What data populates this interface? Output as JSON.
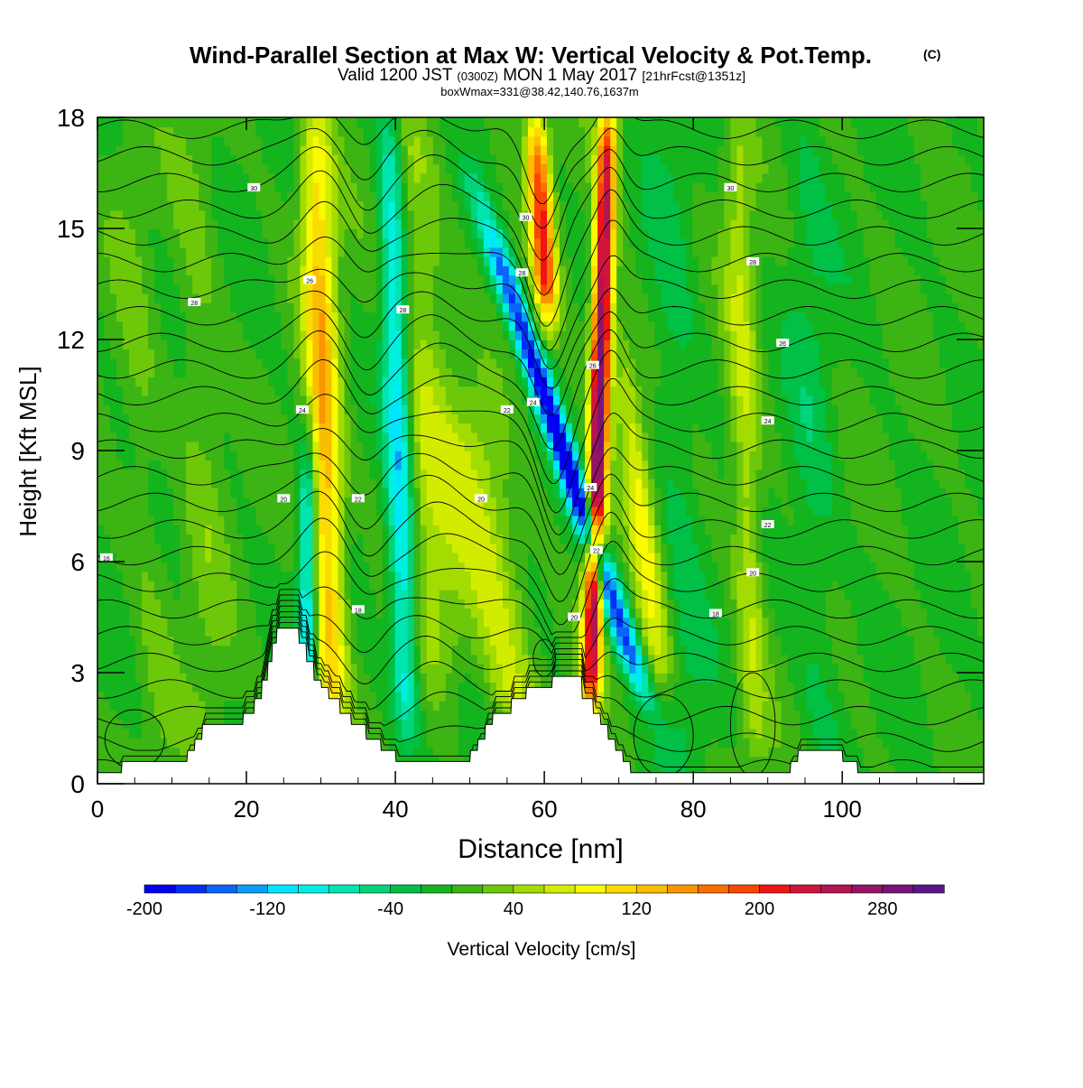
{
  "chart_data": {
    "type": "heatmap",
    "title": "Wind-Parallel Section at Max W: Vertical Velocity & Pot.Temp.",
    "title_mark": "(C)",
    "subtitle": {
      "valid": "Valid 1200 JST",
      "utc": "(0300Z)",
      "date": "MON 1 May 2017",
      "forecast": "[21hrFcst@1351z]"
    },
    "box_info": "boxWmax=331@38.42,140.76,1637m",
    "xlabel": "Distance [nm]",
    "ylabel": "Height [Kft MSL]",
    "xlim": [
      0,
      119
    ],
    "ylim": [
      0,
      18
    ],
    "x_ticks": [
      "0",
      "20",
      "40",
      "60",
      "80",
      "100"
    ],
    "y_ticks": [
      "0",
      "3",
      "6",
      "9",
      "12",
      "15",
      "18"
    ],
    "colorbar": {
      "label": "Vertical Velocity [cm/s]",
      "range": [
        -200,
        320
      ],
      "step": 20,
      "tick_labels": [
        "-200",
        "-120",
        "-40",
        "40",
        "120",
        "200",
        "280"
      ],
      "colors": [
        "#0000f2",
        "#0030f5",
        "#0a64f8",
        "#0a9ef7",
        "#00e6ff",
        "#00f0e0",
        "#00e5b0",
        "#00d47c",
        "#00c046",
        "#14b41e",
        "#3cb414",
        "#6ec80a",
        "#a2dc00",
        "#d2ec00",
        "#fafa00",
        "#fadc00",
        "#fabe00",
        "#fa9600",
        "#fa6e00",
        "#fa4600",
        "#f01414",
        "#d2143c",
        "#b41450",
        "#961464",
        "#781478",
        "#5a148c"
      ]
    },
    "terrain_kft": [
      [
        0,
        0.3
      ],
      [
        3.2,
        0.3
      ],
      [
        3.3,
        0.6
      ],
      [
        12,
        0.6
      ],
      [
        12.1,
        0.9
      ],
      [
        13,
        0.9
      ],
      [
        13.1,
        1.2
      ],
      [
        14,
        1.2
      ],
      [
        14.1,
        1.6
      ],
      [
        19.5,
        1.6
      ],
      [
        19.6,
        1.9
      ],
      [
        21,
        1.9
      ],
      [
        21.1,
        2.3
      ],
      [
        22,
        2.3
      ],
      [
        22.1,
        2.8
      ],
      [
        22.8,
        2.8
      ],
      [
        22.9,
        3.3
      ],
      [
        23.4,
        3.3
      ],
      [
        23.5,
        3.8
      ],
      [
        24,
        3.8
      ],
      [
        24.1,
        4.2
      ],
      [
        27,
        4.2
      ],
      [
        27.1,
        3.8
      ],
      [
        28,
        3.8
      ],
      [
        28.1,
        3.3
      ],
      [
        29,
        3.3
      ],
      [
        29.1,
        2.8
      ],
      [
        30,
        2.8
      ],
      [
        30.1,
        2.6
      ],
      [
        31,
        2.6
      ],
      [
        31.1,
        2.3
      ],
      [
        32.5,
        2.3
      ],
      [
        32.6,
        1.9
      ],
      [
        34,
        1.9
      ],
      [
        34.1,
        1.6
      ],
      [
        36,
        1.6
      ],
      [
        36.1,
        1.2
      ],
      [
        38,
        1.2
      ],
      [
        38.1,
        0.9
      ],
      [
        40,
        0.9
      ],
      [
        40.1,
        0.6
      ],
      [
        50,
        0.6
      ],
      [
        50.1,
        0.9
      ],
      [
        51,
        0.9
      ],
      [
        51.1,
        1.2
      ],
      [
        52,
        1.2
      ],
      [
        52.1,
        1.6
      ],
      [
        53,
        1.6
      ],
      [
        53.1,
        1.9
      ],
      [
        55.5,
        1.9
      ],
      [
        55.6,
        2.3
      ],
      [
        57.5,
        2.3
      ],
      [
        57.6,
        2.6
      ],
      [
        61,
        2.6
      ],
      [
        61.1,
        2.9
      ],
      [
        65,
        2.9
      ],
      [
        65.1,
        2.3
      ],
      [
        66.5,
        2.3
      ],
      [
        66.6,
        1.9
      ],
      [
        67.5,
        1.9
      ],
      [
        67.6,
        1.6
      ],
      [
        68.5,
        1.6
      ],
      [
        68.6,
        1.2
      ],
      [
        69.5,
        1.2
      ],
      [
        69.6,
        0.9
      ],
      [
        70.5,
        0.9
      ],
      [
        70.6,
        0.6
      ],
      [
        71.5,
        0.6
      ],
      [
        71.6,
        0.3
      ],
      [
        93,
        0.3
      ],
      [
        93.1,
        0.6
      ],
      [
        94,
        0.6
      ],
      [
        94.1,
        0.9
      ],
      [
        100,
        0.9
      ],
      [
        100.1,
        0.6
      ],
      [
        102,
        0.6
      ],
      [
        102.1,
        0.3
      ],
      [
        119,
        0.3
      ]
    ],
    "w_features": [
      {
        "kind": "up",
        "x_nm": 30.5,
        "z_low": 2,
        "z_top": 18,
        "lean": 0.05,
        "width_nm": 2.2,
        "peak": 140
      },
      {
        "kind": "down",
        "x_nm": 40.5,
        "z_low": 2,
        "z_top": 18,
        "lean": 0.05,
        "width_nm": 1.8,
        "peak": -130
      },
      {
        "kind": "down",
        "x_nm": 28.2,
        "z_low": 3,
        "z_top": 9,
        "lean": 0.0,
        "width_nm": 1.2,
        "peak": -120
      },
      {
        "kind": "up",
        "x_nm": 67.2,
        "z_low": 2.5,
        "z_top": 18,
        "lean": -0.05,
        "width_nm": 1.3,
        "peak": 300
      },
      {
        "kind": "down",
        "x_nm": 62.5,
        "z_low": 3,
        "z_top": 15,
        "lean": 0.55,
        "width_nm": 1.6,
        "peak": -200
      },
      {
        "kind": "up",
        "x_nm": 61.5,
        "z_low": 13,
        "z_top": 18,
        "lean": 0.1,
        "width_nm": 1.5,
        "peak": 200
      },
      {
        "kind": "up",
        "x_nm": 44,
        "z_low": 3,
        "z_top": 18,
        "lean": 0.1,
        "width_nm": 4,
        "peak": 55
      },
      {
        "kind": "up",
        "x_nm": 72,
        "z_low": 3,
        "z_top": 12,
        "lean": 0.2,
        "width_nm": 2,
        "peak": 80
      },
      {
        "kind": "up",
        "x_nm": 50,
        "z_low": 2,
        "z_top": 10,
        "lean": 0.3,
        "width_nm": 4,
        "peak": 70
      },
      {
        "kind": "up",
        "x_nm": 87,
        "z_low": 1,
        "z_top": 18,
        "lean": 0.05,
        "width_nm": 2,
        "peak": 60
      },
      {
        "kind": "up",
        "x_nm": 14,
        "z_low": 1,
        "z_top": 18,
        "lean": 0.05,
        "width_nm": 3,
        "peak": 25
      },
      {
        "kind": "up",
        "x_nm": 6,
        "z_low": 0.5,
        "z_top": 18,
        "lean": 0.1,
        "width_nm": 2.5,
        "peak": 20
      },
      {
        "kind": "down",
        "x_nm": 96,
        "z_low": 1,
        "z_top": 18,
        "lean": 0.05,
        "width_nm": 3,
        "peak": -25
      },
      {
        "kind": "down",
        "x_nm": 78,
        "z_low": 0.5,
        "z_top": 18,
        "lean": 0.05,
        "width_nm": 3,
        "peak": -25
      }
    ],
    "theta_contours": {
      "levels_c": [
        14,
        15,
        16,
        17,
        18,
        19,
        20,
        21,
        22,
        23,
        24,
        25,
        26,
        27,
        28,
        29,
        30,
        31,
        32,
        33,
        34,
        35,
        36,
        37,
        38
      ],
      "labels": [
        {
          "text": "16",
          "x_nm": 1.2,
          "z": 6.1
        },
        {
          "text": "18",
          "x_nm": 35,
          "z": 4.7
        },
        {
          "text": "20",
          "x_nm": 25,
          "z": 7.7
        },
        {
          "text": "22",
          "x_nm": 35,
          "z": 7.7
        },
        {
          "text": "24",
          "x_nm": 27.5,
          "z": 10.1
        },
        {
          "text": "26",
          "x_nm": 28.5,
          "z": 13.6
        },
        {
          "text": "28",
          "x_nm": 13,
          "z": 13
        },
        {
          "text": "30",
          "x_nm": 21,
          "z": 16.1
        },
        {
          "text": "28",
          "x_nm": 41,
          "z": 12.8
        },
        {
          "text": "20",
          "x_nm": 51.5,
          "z": 7.7
        },
        {
          "text": "22",
          "x_nm": 55,
          "z": 10.1
        },
        {
          "text": "24",
          "x_nm": 58.5,
          "z": 10.3
        },
        {
          "text": "28",
          "x_nm": 57,
          "z": 13.8
        },
        {
          "text": "30",
          "x_nm": 57.5,
          "z": 15.3
        },
        {
          "text": "26",
          "x_nm": 66.5,
          "z": 11.3
        },
        {
          "text": "24",
          "x_nm": 66.2,
          "z": 8
        },
        {
          "text": "22",
          "x_nm": 67,
          "z": 6.3
        },
        {
          "text": "20",
          "x_nm": 64,
          "z": 4.5
        },
        {
          "text": "30",
          "x_nm": 85,
          "z": 16.1
        },
        {
          "text": "28",
          "x_nm": 88,
          "z": 14.1
        },
        {
          "text": "26",
          "x_nm": 92,
          "z": 11.9
        },
        {
          "text": "24",
          "x_nm": 90,
          "z": 9.8
        },
        {
          "text": "22",
          "x_nm": 90,
          "z": 7
        },
        {
          "text": "20",
          "x_nm": 88,
          "z": 5.7
        },
        {
          "text": "18",
          "x_nm": 83,
          "z": 4.6
        }
      ]
    }
  }
}
